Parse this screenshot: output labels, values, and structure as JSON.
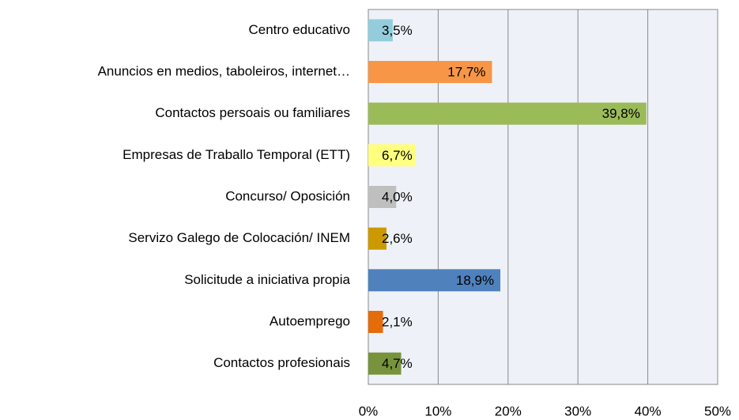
{
  "chart_data": {
    "type": "bar",
    "categories": [
      "Centro educativo",
      "Anuncios en medios, taboleiros, internet…",
      "Contactos persoais ou familiares",
      "Empresas de Traballo Temporal (ETT)",
      "Concurso/ Oposición",
      "Servizo Galego de Colocación/ INEM",
      "Solicitude a iniciativa propia",
      "Autoemprego",
      "Contactos profesionais"
    ],
    "values": [
      3.5,
      17.7,
      39.8,
      6.7,
      4.0,
      2.6,
      18.9,
      2.1,
      4.7
    ],
    "value_labels": [
      "3,5%",
      "17,7%",
      "39,8%",
      "6,7%",
      "4,0%",
      "2,6%",
      "18,9%",
      "2,1%",
      "4,7%"
    ],
    "colors": [
      "#93cddd",
      "#f79646",
      "#9bbb59",
      "#ffff80",
      "#bfbfbf",
      "#cc9900",
      "#4f81bd",
      "#e46c0a",
      "#77933c"
    ],
    "xlim": [
      0,
      50
    ],
    "xticks": [
      {
        "value": 0,
        "label": "0%"
      },
      {
        "value": 10,
        "label": "10%"
      },
      {
        "value": 20,
        "label": "20%"
      },
      {
        "value": 30,
        "label": "30%"
      },
      {
        "value": 40,
        "label": "40%"
      },
      {
        "value": 50,
        "label": "50%"
      }
    ],
    "grid": true
  }
}
